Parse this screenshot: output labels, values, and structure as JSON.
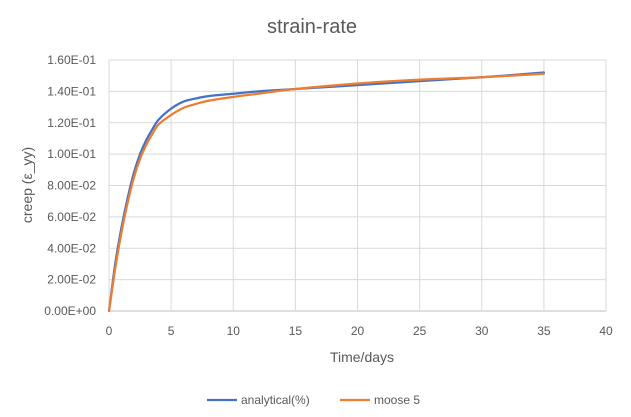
{
  "chart_data": {
    "type": "line",
    "title": "strain-rate",
    "xlabel": "Time/days",
    "ylabel": "creep (ε_yy)",
    "xlim": [
      0,
      40
    ],
    "ylim": [
      0,
      0.16
    ],
    "x_ticks": [
      0,
      5,
      10,
      15,
      20,
      25,
      30,
      35,
      40
    ],
    "y_ticks": [
      0.0,
      0.02,
      0.04,
      0.06,
      0.08,
      0.1,
      0.12,
      0.14,
      0.16
    ],
    "x_tick_labels": [
      "0",
      "5",
      "10",
      "15",
      "20",
      "25",
      "30",
      "35",
      "40"
    ],
    "y_tick_labels": [
      "0.00E+00",
      "2.00E-02",
      "4.00E-02",
      "6.00E-02",
      "8.00E-02",
      "1.00E-01",
      "1.20E-01",
      "1.40E-01",
      "1.60E-01"
    ],
    "grid": true,
    "legend_position": "bottom",
    "series": [
      {
        "name": "analytical(%)",
        "color": "#4472C4",
        "x": [
          0,
          0.5,
          1,
          1.5,
          2,
          2.5,
          3,
          3.5,
          4,
          5,
          6,
          7,
          8,
          10,
          12,
          15,
          20,
          25,
          30,
          35
        ],
        "y": [
          0.0,
          0.03,
          0.053,
          0.072,
          0.088,
          0.1,
          0.109,
          0.116,
          0.122,
          0.129,
          0.1335,
          0.1355,
          0.137,
          0.1385,
          0.14,
          0.1415,
          0.144,
          0.1465,
          0.149,
          0.152
        ]
      },
      {
        "name": "moose 5",
        "color": "#ED7D31",
        "x": [
          0,
          0.5,
          1,
          1.5,
          2,
          2.5,
          3,
          3.5,
          4,
          5,
          6,
          7,
          8,
          10,
          12,
          15,
          20,
          25,
          30,
          35
        ],
        "y": [
          0.0,
          0.027,
          0.05,
          0.069,
          0.085,
          0.097,
          0.106,
          0.113,
          0.119,
          0.125,
          0.1295,
          0.132,
          0.134,
          0.1365,
          0.1385,
          0.1415,
          0.145,
          0.1475,
          0.149,
          0.1512
        ]
      }
    ]
  }
}
